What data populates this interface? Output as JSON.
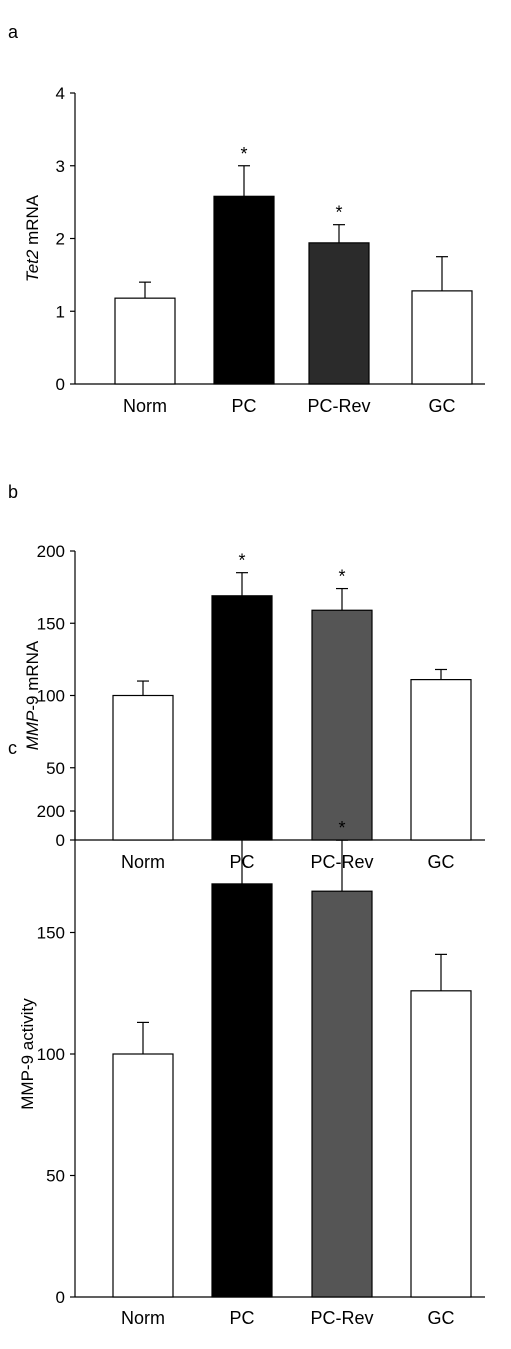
{
  "chart_data": [
    {
      "type": "bar",
      "panel_label": "a",
      "categories": [
        "Norm",
        "PC",
        "PC-Rev",
        "GC"
      ],
      "values": [
        1.18,
        2.58,
        1.94,
        1.28
      ],
      "errors": [
        0.22,
        0.42,
        0.25,
        0.47
      ],
      "significant": [
        "",
        "*",
        "*",
        ""
      ],
      "bar_colors": [
        "#ffffff",
        "#000000",
        "#2b2b2b",
        "#ffffff"
      ],
      "ylabel_italic": "Tet2",
      "ylabel_rest": " mRNA",
      "ylim": [
        0,
        4
      ],
      "yticks": [
        0,
        1,
        2,
        3,
        4
      ],
      "ytick_labels": [
        "0",
        "1",
        "2",
        "3",
        "4"
      ]
    },
    {
      "type": "bar",
      "panel_label": "b",
      "categories": [
        "Norm",
        "PC",
        "PC-Rev",
        "GC"
      ],
      "values": [
        100,
        169,
        159,
        111
      ],
      "errors": [
        10,
        16,
        15,
        7
      ],
      "significant": [
        "",
        "*",
        "*",
        ""
      ],
      "bar_colors": [
        "#ffffff",
        "#000000",
        "#555555",
        "#ffffff"
      ],
      "ylabel_italic": "MMP",
      "ylabel_rest": "-9 mRNA",
      "ylim": [
        0,
        200
      ],
      "yticks": [
        0,
        50,
        100,
        150,
        200
      ],
      "ytick_labels": [
        "0",
        "50",
        "100",
        "150",
        "200"
      ]
    },
    {
      "type": "bar",
      "panel_label": "c",
      "categories": [
        "Norm",
        "PC",
        "PC-Rev",
        "GC"
      ],
      "values": [
        100,
        170,
        167,
        126
      ],
      "errors": [
        13,
        23,
        21,
        15
      ],
      "significant": [
        "",
        "*",
        "*",
        ""
      ],
      "bar_colors": [
        "#ffffff",
        "#000000",
        "#555555",
        "#ffffff"
      ],
      "ylabel_italic": "",
      "ylabel_rest": "MMP-9 activity",
      "ylim": [
        0,
        200
      ],
      "yticks": [
        0,
        50,
        100,
        150,
        200
      ],
      "ytick_labels": [
        "0",
        "50",
        "100",
        "150",
        "200"
      ]
    }
  ]
}
